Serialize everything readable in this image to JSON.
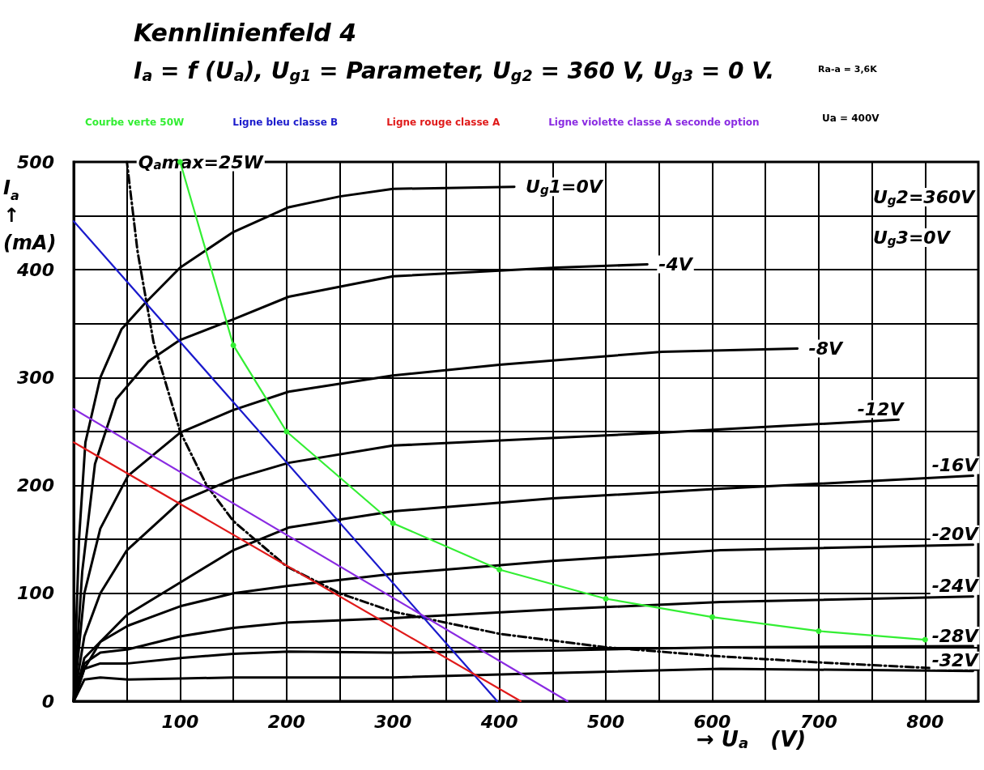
{
  "chart_data": {
    "type": "line",
    "title": "Kennlinienfeld 4",
    "subtitle": "I$_{a}$ = f (U$_{a}$), U$_{g1}$ = Parameter, U$_{g2}$ = 360 V, U$_{g3}$ = 0 V.",
    "xlabel": "→ U$_{a}$   (V)",
    "ylabel": "I$_{a}$ ↑ (mA)",
    "annotations": [
      "U$_{g}$2=360V",
      "U$_{g}$3=0V",
      "Ra-a = 3,6K",
      "Ua = 400V"
    ],
    "xlim": [
      0,
      850
    ],
    "ylim": [
      0,
      500
    ],
    "xticks": [
      {
        "value": 50,
        "label": null
      },
      100,
      {
        "value": 150,
        "label": null
      },
      200,
      {
        "value": 250,
        "label": null
      },
      300,
      {
        "value": 350,
        "label": null
      },
      400,
      {
        "value": 450,
        "label": null
      },
      500,
      {
        "value": 550,
        "label": null
      },
      600,
      {
        "value": 650,
        "label": null
      },
      700,
      {
        "value": 750,
        "label": null
      },
      800,
      {
        "value": 850,
        "label": null
      }
    ],
    "yticks": [
      0,
      {
        "value": 50,
        "label": null
      },
      100,
      {
        "value": 150,
        "label": null
      },
      200,
      {
        "value": 250,
        "label": null
      },
      300,
      {
        "value": 350,
        "label": null
      },
      400,
      {
        "value": 450,
        "label": null
      },
      500
    ],
    "grid": true,
    "legend": "top left",
    "series": [
      {
        "name": "Courbe verte 50W",
        "color": "#33ee33",
        "marker": "circle",
        "x": [
          100,
          150,
          200,
          300,
          400,
          500,
          600,
          700,
          800
        ],
        "values": [
          500,
          330,
          250,
          165,
          122,
          95,
          78,
          65,
          57
        ]
      },
      {
        "name": "Ligne bleu classe B",
        "color": "#1a1acc",
        "x": [
          0,
          398
        ],
        "values": [
          445,
          0
        ]
      },
      {
        "name": "Ligne rouge classe A",
        "color": "#e01a1a",
        "x": [
          0,
          420
        ],
        "values": [
          240,
          0
        ]
      },
      {
        "name": "Ligne violette classe A seconde option",
        "color": "#8a2be2",
        "x": [
          0,
          464
        ],
        "values": [
          271,
          0
        ]
      },
      {
        "name": "U$_{g}$1=0V",
        "color": "#000000",
        "x": [
          0,
          5,
          11,
          25,
          45,
          67,
          100,
          150,
          202,
          250,
          300,
          414
        ],
        "values": [
          0,
          150,
          240,
          300,
          345,
          369,
          402,
          435,
          458,
          468,
          475,
          477
        ]
      },
      {
        "name": "-4V",
        "color": "#000000",
        "x": [
          0,
          8,
          20,
          40,
          70,
          100,
          150,
          202,
          300,
          454,
          539
        ],
        "values": [
          0,
          120,
          220,
          280,
          315,
          335,
          354,
          375,
          394,
          402,
          405
        ]
      },
      {
        "name": "-8V",
        "color": "#000000",
        "x": [
          0,
          10,
          25,
          51,
          100,
          150,
          202,
          300,
          400,
          553,
          680
        ],
        "values": [
          0,
          100,
          160,
          209,
          249,
          270,
          287,
          302,
          312,
          324,
          327
        ]
      },
      {
        "name": "-12V",
        "color": "#000000",
        "x": [
          0,
          10,
          25,
          50,
          100,
          150,
          202,
          300,
          553,
          775
        ],
        "values": [
          0,
          60,
          100,
          140,
          185,
          206,
          221,
          237,
          249,
          261
        ]
      },
      {
        "name": "-16V",
        "color": "#000000",
        "x": [
          0,
          10,
          25,
          50,
          100,
          150,
          202,
          300,
          450,
          608,
          845
        ],
        "values": [
          0,
          30,
          55,
          80,
          110,
          140,
          161,
          176,
          188,
          197,
          209
        ]
      },
      {
        "name": "-20V",
        "color": "#000000",
        "x": [
          0,
          10,
          25,
          51,
          100,
          150,
          202,
          300,
          450,
          608,
          845
        ],
        "values": [
          0,
          40,
          55,
          70,
          88,
          100,
          107,
          118,
          130,
          140,
          145
        ]
      },
      {
        "name": "-24V",
        "color": "#000000",
        "x": [
          0,
          10,
          25,
          51,
          100,
          150,
          202,
          300,
          450,
          608,
          845
        ],
        "values": [
          0,
          35,
          45,
          48,
          60,
          68,
          73,
          77,
          85,
          92,
          97
        ]
      },
      {
        "name": "-28V",
        "color": "#000000",
        "x": [
          0,
          10,
          25,
          51,
          100,
          150,
          202,
          300,
          450,
          608,
          845
        ],
        "values": [
          0,
          30,
          35,
          35,
          40,
          44,
          46,
          45,
          47,
          50,
          51
        ]
      },
      {
        "name": "-32V",
        "color": "#000000",
        "x": [
          0,
          10,
          25,
          51,
          100,
          150,
          202,
          300,
          450,
          608,
          845
        ],
        "values": [
          0,
          20,
          22,
          20,
          21,
          22,
          22,
          22,
          26,
          30,
          28
        ]
      },
      {
        "name": "Q$_{a}$max=25W",
        "color": "#000000",
        "line_style": "dashed",
        "x": [
          850,
          800,
          700,
          600,
          500,
          400,
          300,
          250,
          200,
          150,
          125,
          100,
          75,
          60,
          50
        ],
        "values": [
          29,
          31,
          36,
          42,
          50,
          62.5,
          83,
          100,
          125,
          167,
          200,
          250,
          333,
          417,
          500
        ]
      }
    ]
  }
}
